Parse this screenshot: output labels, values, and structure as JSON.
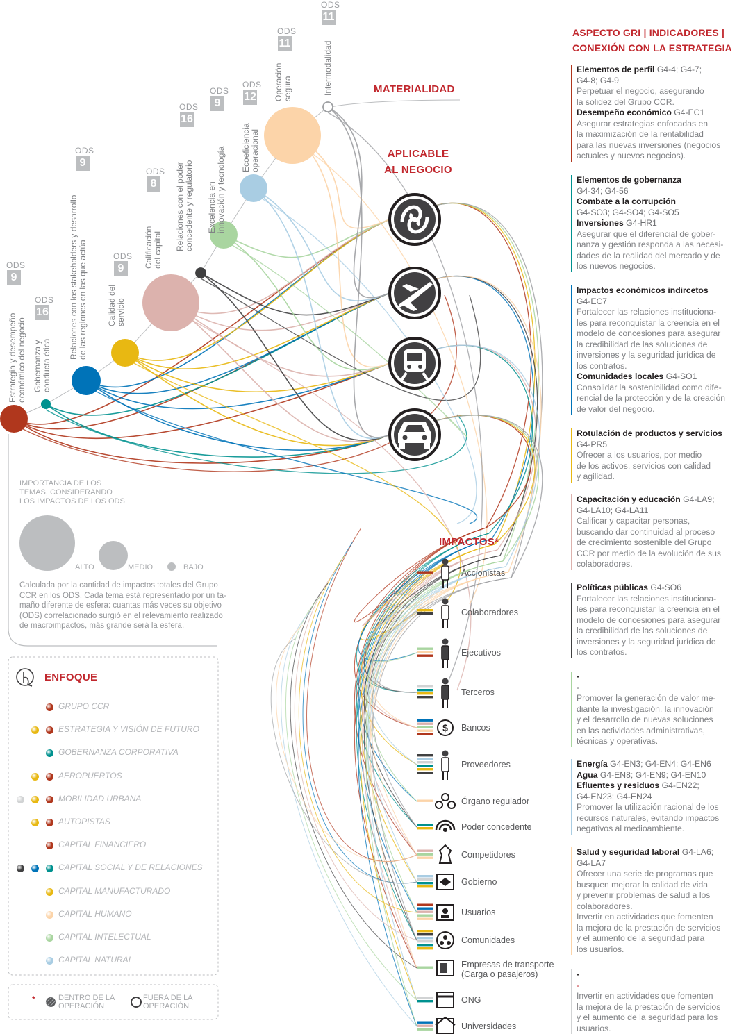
{
  "materiality": {
    "title": "MATERIALIDAD",
    "themes": [
      {
        "label_lines": [
          "Estrategia y desempeño",
          "económico del negocio"
        ],
        "ods_word": "ODS",
        "ods": "9",
        "size": "alto",
        "color": "#b0371d"
      },
      {
        "label_lines": [
          "Gobernanza y",
          "conducta ética"
        ],
        "ods_word": "ODS",
        "ods": "16",
        "size": "bajo",
        "color": "#00918f"
      },
      {
        "label_lines": [
          "Relaciones con los stakeholders y desarrollo",
          "de las regiones en las que actúa"
        ],
        "ods_word": "ODS",
        "ods": "9",
        "size": "medio",
        "color": "#0073b8"
      },
      {
        "label_lines": [
          "Calidad del",
          "servicio"
        ],
        "ods_word": "ODS",
        "ods": "9",
        "size": "medio",
        "color": "#e8b812"
      },
      {
        "label_lines": [
          "Calificación",
          "del capital"
        ],
        "ods_word": "ODS",
        "ods": "8",
        "size": "alto",
        "color": "#dcb2ad"
      },
      {
        "label_lines": [
          "Relaciones con el poder",
          "concedente y regulatorio"
        ],
        "ods_word": "ODS",
        "ods": "16",
        "size": "bajo",
        "color": "#404041"
      },
      {
        "label_lines": [
          "Excelencia en",
          "innovación y tecnología"
        ],
        "ods_word": "ODS",
        "ods": "9",
        "size": "medio",
        "color": "#a9d5a0"
      },
      {
        "label_lines": [
          "Ecoeficiencia",
          "operacional"
        ],
        "ods_word": "ODS",
        "ods": "12",
        "size": "medio",
        "color": "#a9cde3"
      },
      {
        "label_lines": [
          "Operación",
          "segura"
        ],
        "ods_word": "ODS",
        "ods": "11",
        "size": "alto",
        "color": "#fcd4a9"
      },
      {
        "label_lines": [
          "Intermodalidad"
        ],
        "ods_word": "ODS",
        "ods": "11",
        "size": "bajo",
        "color": "#ffffff"
      }
    ]
  },
  "business": {
    "title_lines": [
      "APLICABLE",
      "AL NEGOCIO"
    ],
    "icons": [
      "spiral-logo-icon",
      "airplane-icon",
      "train-icon",
      "car-icon"
    ]
  },
  "importance_legend": {
    "text_lines": [
      "IMPORTANCIA DE LOS",
      "TEMAS, CONSIDERANDO",
      "LOS IMPACTOS DE LOS ODS"
    ],
    "alto": "ALTO",
    "medio": "MEDIO",
    "bajo": "BAJO",
    "note_lines": [
      "Calculada por la cantidad de impactos totales del Grupo",
      "CCR en los ODS. Cada tema está representado por un ta-",
      "maño diferente de esfera: cuantas más veces su objetivo",
      "(ODS) correlacionado surgió en el relevamiento realizado",
      "de macroimpactos, más grande será la esfera."
    ]
  },
  "enfoque": {
    "title": "ENFOQUE",
    "items": [
      {
        "label": "GRUPO CCR",
        "dots": [
          "#b0371d"
        ]
      },
      {
        "label": "ESTRATEGIA Y VISIÓN DE FUTURO",
        "dots": [
          "#e8b812",
          "#b0371d"
        ]
      },
      {
        "label": "GOBERNANZA CORPORATIVA",
        "dots": [
          "#00918f"
        ]
      },
      {
        "label": "AEROPUERTOS",
        "dots": [
          "#e8b812",
          "#b0371d"
        ]
      },
      {
        "label": "MOBILIDAD URBANA",
        "dots": [
          "#d1d3d4",
          "#e8b812",
          "#b0371d"
        ]
      },
      {
        "label": "AUTOPISTAS",
        "dots": [
          "#e8b812",
          "#b0371d"
        ]
      },
      {
        "label": "CAPITAL FINANCIERO",
        "dots": [
          "#b0371d"
        ]
      },
      {
        "label": "CAPITAL SOCIAL Y DE RELACIONES",
        "dots": [
          "#404041",
          "#0073b8",
          "#00918f"
        ]
      },
      {
        "label": "CAPITAL MANUFACTURADO",
        "dots": [
          "#e8b812"
        ]
      },
      {
        "label": "CAPITAL HUMANO",
        "dots": [
          "#fcd4a9"
        ]
      },
      {
        "label": "CAPITAL INTELECTUAL",
        "dots": [
          "#a9d5a0"
        ]
      },
      {
        "label": "CAPITAL NATURAL",
        "dots": [
          "#a9cde3"
        ]
      }
    ],
    "inside_lines": [
      "DENTRO DE LA",
      "OPERACIÓN"
    ],
    "outside_lines": [
      "FUERA DE LA",
      "OPERACIÓN"
    ],
    "asterisk": "*"
  },
  "impacts": {
    "title": "IMPACTOS*",
    "items": [
      {
        "label": "Accionistas",
        "icon": "person-icon"
      },
      {
        "label": "Colaboradores",
        "icon": "worker-icon"
      },
      {
        "label": "Ejecutivos",
        "icon": "executive-icon"
      },
      {
        "label": "Terceros",
        "icon": "third-party-icon"
      },
      {
        "label": "Bancos",
        "icon": "dollar-icon"
      },
      {
        "label": "Proveedores",
        "icon": "supplier-icon"
      },
      {
        "label": "Órgano regulador",
        "icon": "network-icon"
      },
      {
        "label": "Poder concedente",
        "icon": "signal-icon"
      },
      {
        "label": "Competidores",
        "icon": "chess-piece-icon"
      },
      {
        "label": "Gobierno",
        "icon": "flag-icon"
      },
      {
        "label": "Usuarios",
        "icon": "user-card-icon"
      },
      {
        "label": "Comunidades",
        "icon": "community-icon"
      },
      {
        "label": "Empresas de transporte",
        "label2": "(Carga o pasajeros)",
        "icon": "truck-icon"
      },
      {
        "label": "ONG",
        "icon": "ngo-building-icon"
      },
      {
        "label": "Universidades",
        "icon": "university-icon"
      }
    ]
  },
  "gri": {
    "title_lines": [
      "ASPECTO GRI | INDICADORES |",
      "CONEXIÓN CON LA ESTRATEGIA"
    ],
    "blocks": [
      {
        "color": "#b0371d",
        "lines": [
          [
            {
              "t": "Elementos de perfil",
              "b": true
            },
            {
              "t": " G4-4; G4-7;",
              "c": true
            }
          ],
          [
            {
              "t": "G4-8; G4-9",
              "c": true
            }
          ],
          [
            {
              "t": "Perpetuar el negocio, asegurando"
            }
          ],
          [
            {
              "t": "la solidez del Grupo CCR."
            }
          ],
          [
            {
              "t": "Desempeño económico",
              "b": true
            },
            {
              "t": " G4-EC1",
              "c": true
            }
          ],
          [
            {
              "t": "Asegurar estrategias enfocadas en"
            }
          ],
          [
            {
              "t": "la maximización de la rentabilidad"
            }
          ],
          [
            {
              "t": "para las nuevas inversiones (negocios"
            }
          ],
          [
            {
              "t": "actuales y nuevos negocios)."
            }
          ]
        ]
      },
      {
        "color": "#00918f",
        "lines": [
          [
            {
              "t": "Elementos de gobernanza",
              "b": true
            }
          ],
          [
            {
              "t": "G4-34; G4-56",
              "c": true
            }
          ],
          [
            {
              "t": "Combate a la corrupción",
              "b": true
            }
          ],
          [
            {
              "t": "G4-SO3;  G4-SO4;  G4-SO5",
              "c": true
            }
          ],
          [
            {
              "t": "Inversiones",
              "b": true
            },
            {
              "t": " G4-HR1",
              "c": true
            }
          ],
          [
            {
              "t": "Asegurar que el diferencial de gober-"
            }
          ],
          [
            {
              "t": "nanza y gestión responda a las necesi-"
            }
          ],
          [
            {
              "t": "dades de la realidad del mercado y de"
            }
          ],
          [
            {
              "t": "los nuevos negocios."
            }
          ]
        ]
      },
      {
        "color": "#0073b8",
        "lines": [
          [
            {
              "t": "Impactos económicos indircetos",
              "b": true
            }
          ],
          [
            {
              "t": "G4-EC7",
              "c": true
            }
          ],
          [
            {
              "t": "Fortalecer las relaciones instituciona-"
            }
          ],
          [
            {
              "t": "les para reconquistar la creencia en el"
            }
          ],
          [
            {
              "t": "modelo de concesiones para asegurar"
            }
          ],
          [
            {
              "t": "la credibilidad de las soluciones de"
            }
          ],
          [
            {
              "t": "inversiones y la seguridad jurídica de"
            }
          ],
          [
            {
              "t": "los contratos."
            }
          ],
          [
            {
              "t": "Comunidades locales",
              "b": true
            },
            {
              "t": " G4-SO1",
              "c": true
            }
          ],
          [
            {
              "t": "Consolidar la sostenibilidad como dife-"
            }
          ],
          [
            {
              "t": "rencial de la protección y de la creación"
            }
          ],
          [
            {
              "t": "de valor del negocio."
            }
          ]
        ]
      },
      {
        "color": "#e8b812",
        "lines": [
          [
            {
              "t": "Rotulación de productos y servicios",
              "b": true
            }
          ],
          [
            {
              "t": "G4-PR5",
              "c": true
            }
          ],
          [
            {
              "t": "Ofrecer a los usuarios, por medio"
            }
          ],
          [
            {
              "t": "de los activos, servicios con calidad"
            }
          ],
          [
            {
              "t": "y agilidad."
            }
          ]
        ]
      },
      {
        "color": "#dcb2ad",
        "lines": [
          [
            {
              "t": "Capacitación y educación",
              "b": true
            },
            {
              "t": " G4-LA9;",
              "c": true
            }
          ],
          [
            {
              "t": "G4-LA10; G4-LA11",
              "c": true
            }
          ],
          [
            {
              "t": "Calificar y capacitar personas,"
            }
          ],
          [
            {
              "t": "buscando dar continuidad al proceso"
            }
          ],
          [
            {
              "t": "de crecimiento sostenible del Grupo"
            }
          ],
          [
            {
              "t": "CCR por medio de la evolución de sus"
            }
          ],
          [
            {
              "t": "colaboradores."
            }
          ]
        ]
      },
      {
        "color": "#404041",
        "lines": [
          [
            {
              "t": "Políticas públicas",
              "b": true
            },
            {
              "t": " G4-SO6",
              "c": true
            }
          ],
          [
            {
              "t": "Fortalecer las relaciones instituciona-"
            }
          ],
          [
            {
              "t": "les para reconquistar la creencia en el"
            }
          ],
          [
            {
              "t": "modelo de concesiones para asegurar"
            }
          ],
          [
            {
              "t": "la credibilidad de las soluciones de"
            }
          ],
          [
            {
              "t": "inversiones y la seguridad jurídica de"
            }
          ],
          [
            {
              "t": "los contratos."
            }
          ]
        ]
      },
      {
        "color": "#a9d5a0",
        "lines": [
          [
            {
              "t": "-",
              "b": true
            }
          ],
          [
            {
              "t": "-",
              "c": true
            }
          ],
          [
            {
              "t": "Promover la generación de valor me-"
            }
          ],
          [
            {
              "t": "diante la investigación, la innovación"
            }
          ],
          [
            {
              "t": "y el desarrollo de nuevas soluciones"
            }
          ],
          [
            {
              "t": "en las actividades administrativas,"
            }
          ],
          [
            {
              "t": "técnicas y operativas."
            }
          ]
        ]
      },
      {
        "color": "#a9cde3",
        "lines": [
          [
            {
              "t": "Energía",
              "b": true
            },
            {
              "t": " G4-EN3; G4-EN4; G4-EN6",
              "c": true
            }
          ],
          [
            {
              "t": "Agua",
              "b": true
            },
            {
              "t": " G4-EN8; G4-EN9; G4-EN10",
              "c": true
            }
          ],
          [
            {
              "t": "Efluentes y residuos",
              "b": true
            },
            {
              "t": " G4-EN22;",
              "c": true
            }
          ],
          [
            {
              "t": "G4-EN23; G4-EN24",
              "c": true
            }
          ],
          [
            {
              "t": "Promover la utilización racional de los"
            }
          ],
          [
            {
              "t": "recursos naturales, evitando impactos"
            }
          ],
          [
            {
              "t": "negativos al medioambiente."
            }
          ]
        ]
      },
      {
        "color": "#fcd4a9",
        "lines": [
          [
            {
              "t": "Salud y seguridad laboral",
              "b": true
            },
            {
              "t": " G4-LA6;",
              "c": true
            }
          ],
          [
            {
              "t": "G4-LA7",
              "c": true
            }
          ],
          [
            {
              "t": "Ofrecer una serie de programas que"
            }
          ],
          [
            {
              "t": "busquen mejorar la calidad de vida"
            }
          ],
          [
            {
              "t": "y prevenir problemas de salud a los"
            }
          ],
          [
            {
              "t": "colaboradores."
            }
          ],
          [
            {
              "t": "Invertir en actividades que fomenten"
            }
          ],
          [
            {
              "t": "la mejora de la prestación de servicios"
            }
          ],
          [
            {
              "t": "y el aumento de la seguridad para"
            }
          ],
          [
            {
              "t": "los usuarios."
            }
          ]
        ]
      },
      {
        "color": "#d1d3d4",
        "lines": [
          [
            {
              "t": "-",
              "b": true
            }
          ],
          [
            {
              "t": "-",
              "red": true
            }
          ],
          [
            {
              "t": "Invertir en actividades que fomenten"
            }
          ],
          [
            {
              "t": "la mejora de la prestación de servicios"
            }
          ],
          [
            {
              "t": "y el aumento de la seguridad para los"
            }
          ],
          [
            {
              "t": "usuarios."
            }
          ]
        ]
      }
    ]
  }
}
